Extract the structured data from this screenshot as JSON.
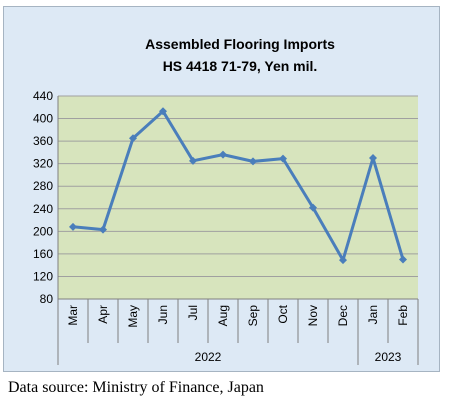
{
  "chart_data": {
    "type": "line",
    "title": "Assembled Flooring Imports",
    "subtitle": "HS 4418 71-79, Yen mil.",
    "categories": [
      "Mar",
      "Apr",
      "May",
      "Jun",
      "Jul",
      "Aug",
      "Sep",
      "Oct",
      "Nov",
      "Dec",
      "Jan",
      "Feb"
    ],
    "series": [
      {
        "values": [
          208,
          203,
          365,
          413,
          325,
          336,
          324,
          329,
          242,
          149,
          330,
          150
        ]
      }
    ],
    "year_groups": [
      {
        "label": "2022",
        "count": 10
      },
      {
        "label": "2023",
        "count": 2
      }
    ],
    "y_ticks": [
      80,
      120,
      160,
      200,
      240,
      280,
      320,
      360,
      400,
      440
    ],
    "ylim": [
      80,
      440
    ],
    "grid": true,
    "legend": "none",
    "colors": {
      "line": "#4a7ebb",
      "plot_bg": "#d7e4bd",
      "frame_bg": "#dde9f5",
      "grid": "#a0a0a0"
    }
  },
  "source_note": "Data source: Ministry of Finance, Japan"
}
